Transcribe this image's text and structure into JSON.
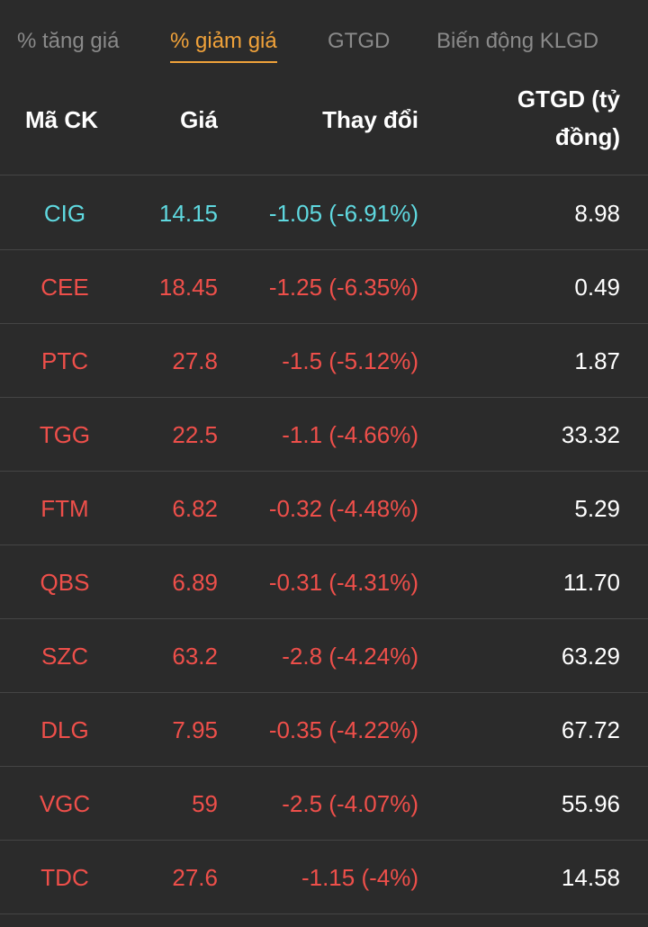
{
  "colors": {
    "background": "#2b2b2b",
    "accent": "#f0a23a",
    "tab_inactive": "#8a8a8a",
    "down": "#ee4f4a",
    "floor": "#5fd9e0",
    "divider": "#454545"
  },
  "tabs": [
    {
      "label": "% tăng giá",
      "active": false
    },
    {
      "label": "% giảm giá",
      "active": true
    },
    {
      "label": "GTGD",
      "active": false
    },
    {
      "label": "Biến động KLGD",
      "active": false
    }
  ],
  "columns": {
    "code": "Mã CK",
    "price": "Giá",
    "change": "Thay đổi",
    "value_line1": "GTGD (tỷ",
    "value_line2": "đồng)"
  },
  "rows": [
    {
      "code": "CIG",
      "price": "14.15",
      "change": "-1.05 (-6.91%)",
      "value": "8.98",
      "status": "floor"
    },
    {
      "code": "CEE",
      "price": "18.45",
      "change": "-1.25 (-6.35%)",
      "value": "0.49",
      "status": "down"
    },
    {
      "code": "PTC",
      "price": "27.8",
      "change": "-1.5 (-5.12%)",
      "value": "1.87",
      "status": "down"
    },
    {
      "code": "TGG",
      "price": "22.5",
      "change": "-1.1 (-4.66%)",
      "value": "33.32",
      "status": "down"
    },
    {
      "code": "FTM",
      "price": "6.82",
      "change": "-0.32 (-4.48%)",
      "value": "5.29",
      "status": "down"
    },
    {
      "code": "QBS",
      "price": "6.89",
      "change": "-0.31 (-4.31%)",
      "value": "11.70",
      "status": "down"
    },
    {
      "code": "SZC",
      "price": "63.2",
      "change": "-2.8 (-4.24%)",
      "value": "63.29",
      "status": "down"
    },
    {
      "code": "DLG",
      "price": "7.95",
      "change": "-0.35 (-4.22%)",
      "value": "67.72",
      "status": "down"
    },
    {
      "code": "VGC",
      "price": "59",
      "change": "-2.5 (-4.07%)",
      "value": "55.96",
      "status": "down"
    },
    {
      "code": "TDC",
      "price": "27.6",
      "change": "-1.15 (-4%)",
      "value": "14.58",
      "status": "down"
    }
  ]
}
